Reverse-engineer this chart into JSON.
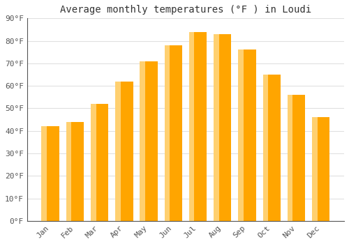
{
  "months": [
    "Jan",
    "Feb",
    "Mar",
    "Apr",
    "May",
    "Jun",
    "Jul",
    "Aug",
    "Sep",
    "Oct",
    "Nov",
    "Dec"
  ],
  "temperatures": [
    42,
    44,
    52,
    62,
    71,
    78,
    84,
    83,
    76,
    65,
    56,
    46
  ],
  "bar_color_main": "#FFA500",
  "bar_color_highlight": "#FFD070",
  "title": "Average monthly temperatures (°F ) in Loudi",
  "ylim": [
    0,
    90
  ],
  "yticks": [
    0,
    10,
    20,
    30,
    40,
    50,
    60,
    70,
    80,
    90
  ],
  "ytick_labels": [
    "0°F",
    "10°F",
    "20°F",
    "30°F",
    "40°F",
    "50°F",
    "60°F",
    "70°F",
    "80°F",
    "90°F"
  ],
  "background_color": "#ffffff",
  "grid_color": "#e0e0e0",
  "title_fontsize": 10,
  "tick_fontsize": 8,
  "font_family": "monospace"
}
